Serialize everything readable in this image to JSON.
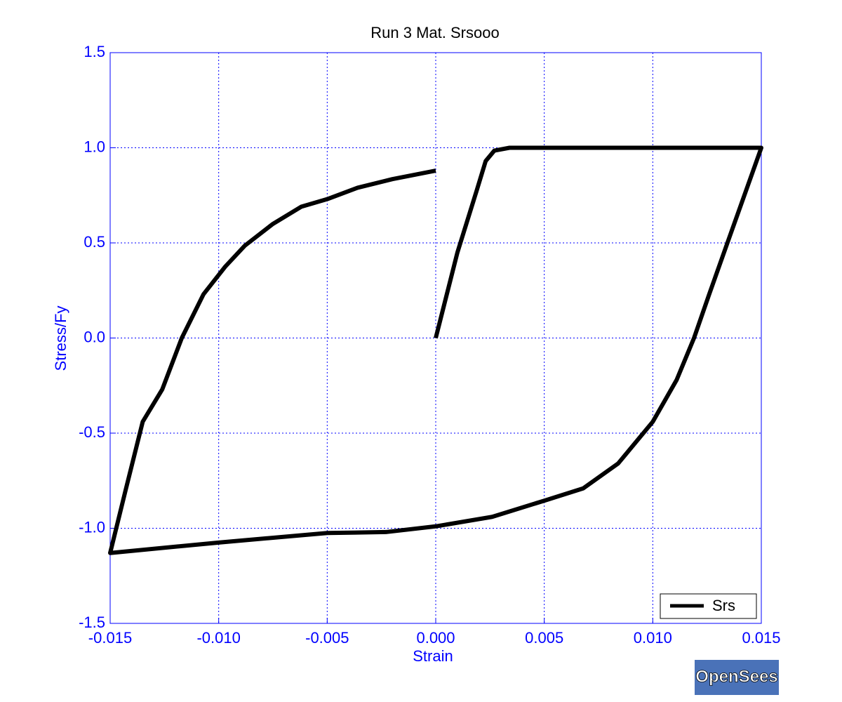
{
  "chart_data": {
    "type": "line",
    "title": "Run 3   Mat. Srsooo",
    "xlabel": "Strain",
    "ylabel": "Stress/Fy",
    "x": [
      0,
      0.001,
      0.0019,
      0.0023,
      0.0027,
      0.0034,
      0.015,
      0.0135,
      0.0126,
      0.0119,
      0.0111,
      0.01,
      0.0084,
      0.0068,
      0.005,
      0.0026,
      0,
      -0.0023,
      -0.005,
      -0.01,
      -0.015,
      -0.0143,
      -0.0135,
      -0.0126,
      -0.0117,
      -0.0107,
      -0.0097,
      -0.0088,
      -0.0075,
      -0.0062,
      -0.005,
      -0.0036,
      -0.002,
      0
    ],
    "series": [
      {
        "name": "Srs",
        "color": "#000000",
        "values": [
          0,
          0.45,
          0.78,
          0.93,
          0.985,
          1.0,
          1.0,
          0.52,
          0.23,
          0,
          -0.22,
          -0.44,
          -0.66,
          -0.79,
          -0.855,
          -0.94,
          -0.99,
          -1.02,
          -1.025,
          -1.075,
          -1.13,
          -0.805,
          -0.44,
          -0.27,
          0,
          0.23,
          0.375,
          0.485,
          0.6,
          0.69,
          0.73,
          0.79,
          0.835,
          0.88
        ]
      }
    ],
    "xlim": [
      -0.015,
      0.015
    ],
    "ylim": [
      -1.5,
      1.5
    ],
    "xticks": [
      {
        "value": -0.015,
        "label": "-0.015"
      },
      {
        "value": -0.01,
        "label": "-0.010"
      },
      {
        "value": -0.005,
        "label": "-0.005"
      },
      {
        "value": 0,
        "label": "0.000"
      },
      {
        "value": 0.005,
        "label": "0.005"
      },
      {
        "value": 0.01,
        "label": "0.010"
      },
      {
        "value": 0.015,
        "label": "0.015"
      }
    ],
    "yticks": [
      1.5,
      {
        "value": 1,
        "label": "1.0"
      },
      0.5,
      {
        "value": 0,
        "label": "0.0"
      },
      -0.5,
      {
        "value": -1,
        "label": "-1.0"
      },
      -1.5
    ],
    "grid": true,
    "legend": "lower right",
    "logo": "OpenSees"
  }
}
